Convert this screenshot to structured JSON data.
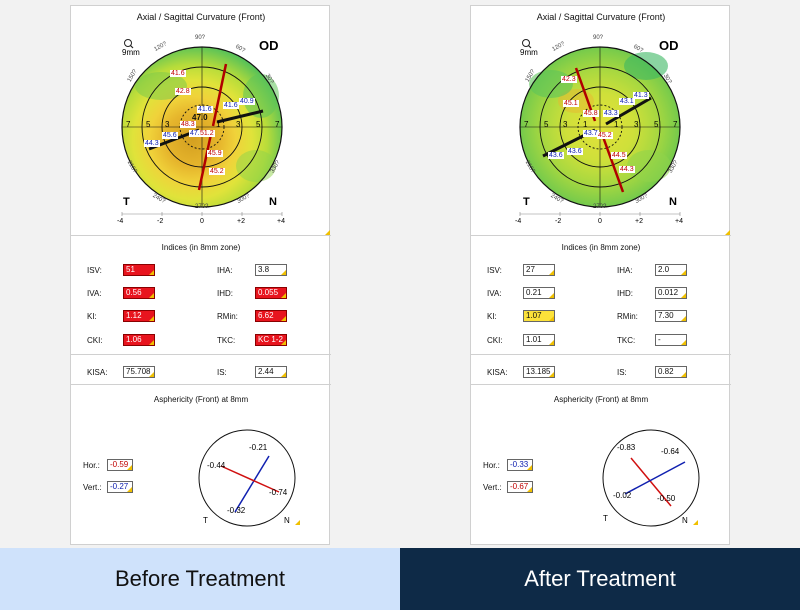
{
  "colors": {
    "accent_red": "#e8141e",
    "accent_yellow": "#fce23a",
    "corner_marker": "#f0c000",
    "left_caption_bg": "#cfe2fb",
    "right_caption_bg": "#0e2a47"
  },
  "panels": [
    {
      "title": "Axial / Sagittal Curvature (Front)",
      "zoom_label": "9mm",
      "eye_label": "OD",
      "temporal_label": "T",
      "nasal_label": "N",
      "degree_labels": [
        "90?",
        "120?",
        "60?",
        "150?",
        "30?",
        "210?",
        "330?",
        "240?",
        "300?",
        "270?"
      ],
      "ring_labels": [
        "7",
        "5",
        "3",
        "1",
        "1",
        "3",
        "5",
        "7"
      ],
      "scale_labels": [
        "-4",
        "-2",
        "0",
        "+2",
        "+4"
      ],
      "curvature_values": [
        {
          "value": "41.6",
          "color": "red"
        },
        {
          "value": "42.8",
          "color": "red"
        },
        {
          "value": "41.6",
          "color": "blue"
        },
        {
          "value": "41.6",
          "color": "blue"
        },
        {
          "value": "40.9",
          "color": "blue"
        },
        {
          "value": "48.3",
          "color": "red"
        },
        {
          "value": "47.0",
          "color": "black"
        },
        {
          "value": "45.6",
          "color": "blue"
        },
        {
          "value": "47.5",
          "color": "blue"
        },
        {
          "value": "51.2",
          "color": "red"
        },
        {
          "value": "44.3",
          "color": "blue"
        },
        {
          "value": "45.9",
          "color": "red"
        },
        {
          "value": "45.2",
          "color": "red"
        }
      ],
      "indices_title": "Indices (in 8mm zone)",
      "indices": [
        {
          "label": "ISV:",
          "value": "51",
          "state": "red"
        },
        {
          "label": "IHA:",
          "value": "3.8",
          "state": "normal"
        },
        {
          "label": "IVA:",
          "value": "0.56",
          "state": "red"
        },
        {
          "label": "IHD:",
          "value": "0.055",
          "state": "red"
        },
        {
          "label": "KI:",
          "value": "1.12",
          "state": "red"
        },
        {
          "label": "RMin:",
          "value": "6.62",
          "state": "red"
        },
        {
          "label": "CKI:",
          "value": "1.06",
          "state": "red"
        },
        {
          "label": "TKC:",
          "value": "KC 1-2",
          "state": "red"
        }
      ],
      "kisa": {
        "label": "KISA:",
        "value": "75.708"
      },
      "is": {
        "label": "IS:",
        "value": "2.44"
      },
      "asphericity_title": "Asphericity (Front) at 8mm",
      "hor": {
        "label": "Hor.:",
        "value": "-0.59",
        "color": "red"
      },
      "vert": {
        "label": "Vert.:",
        "value": "-0.27",
        "color": "blue"
      },
      "axis_values": {
        "top": "-0.21",
        "left": "-0.44",
        "right": "-0.74",
        "bottom": "-0.32"
      },
      "dial_temporal": "T",
      "dial_nasal": "N"
    },
    {
      "title": "Axial / Sagittal Curvature (Front)",
      "zoom_label": "9mm",
      "eye_label": "OD",
      "temporal_label": "T",
      "nasal_label": "N",
      "degree_labels": [
        "90?",
        "120?",
        "60?",
        "150?",
        "30?",
        "210?",
        "330?",
        "240?",
        "300?",
        "270?"
      ],
      "ring_labels": [
        "7",
        "5",
        "3",
        "1",
        "1",
        "3",
        "5",
        "7"
      ],
      "scale_labels": [
        "-4",
        "-2",
        "0",
        "+2",
        "+4"
      ],
      "curvature_values": [
        {
          "value": "42.3",
          "color": "red"
        },
        {
          "value": "45.1",
          "color": "red"
        },
        {
          "value": "45.8",
          "color": "red"
        },
        {
          "value": "43.3",
          "color": "blue"
        },
        {
          "value": "43.1",
          "color": "blue"
        },
        {
          "value": "41.3",
          "color": "blue"
        },
        {
          "value": "43.7",
          "color": "blue"
        },
        {
          "value": "45.2",
          "color": "red"
        },
        {
          "value": "43.6",
          "color": "blue"
        },
        {
          "value": "43.6",
          "color": "blue"
        },
        {
          "value": "44.5",
          "color": "red"
        },
        {
          "value": "44.3",
          "color": "red"
        }
      ],
      "indices_title": "Indices (in 8mm zone)",
      "indices": [
        {
          "label": "ISV:",
          "value": "27",
          "state": "normal"
        },
        {
          "label": "IHA:",
          "value": "2.0",
          "state": "normal"
        },
        {
          "label": "IVA:",
          "value": "0.21",
          "state": "normal"
        },
        {
          "label": "IHD:",
          "value": "0.012",
          "state": "normal"
        },
        {
          "label": "KI:",
          "value": "1.07",
          "state": "yellow"
        },
        {
          "label": "RMin:",
          "value": "7.30",
          "state": "normal"
        },
        {
          "label": "CKI:",
          "value": "1.01",
          "state": "normal"
        },
        {
          "label": "TKC:",
          "value": "-",
          "state": "normal"
        }
      ],
      "kisa": {
        "label": "KISA:",
        "value": "13.185"
      },
      "is": {
        "label": "IS:",
        "value": "0.82"
      },
      "asphericity_title": "Asphericity (Front) at 8mm",
      "hor": {
        "label": "Hor.:",
        "value": "-0.33",
        "color": "blue"
      },
      "vert": {
        "label": "Vert.:",
        "value": "-0.67",
        "color": "red"
      },
      "axis_values": {
        "top": "-0.83",
        "left": "-0.02",
        "right": "-0.64",
        "bottom": "-0.50"
      },
      "dial_temporal": "T",
      "dial_nasal": "N"
    }
  ],
  "captions": {
    "before": "Before Treatment",
    "after": "After Treatment"
  }
}
